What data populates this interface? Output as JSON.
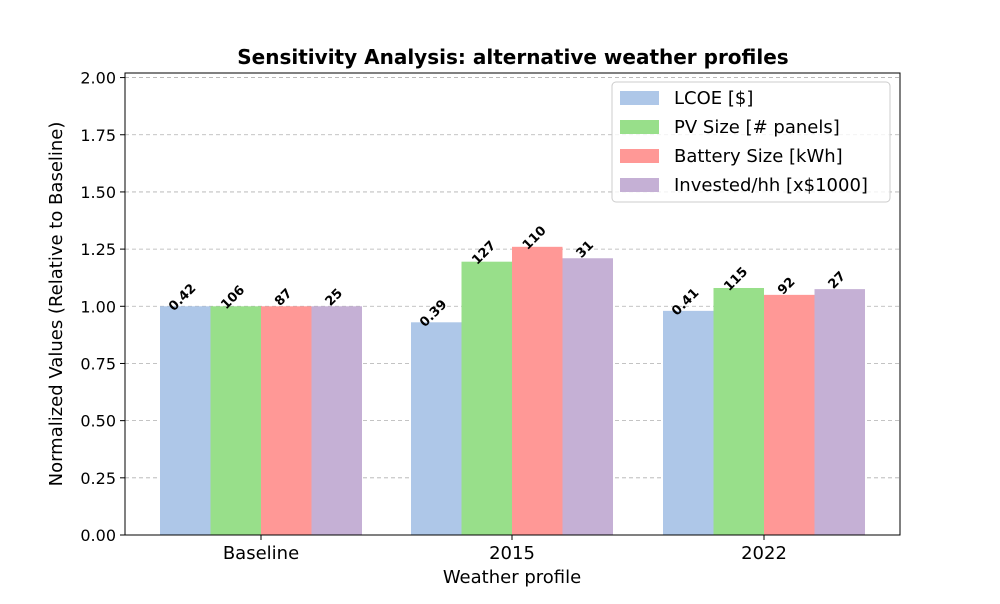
{
  "chart_data": {
    "type": "bar",
    "title": "Sensitivity Analysis: alternative weather profiles",
    "xlabel": "Weather profile",
    "ylabel": "Normalized Values (Relative to Baseline)",
    "ylim": [
      0,
      2.02
    ],
    "yticks": [
      0.0,
      0.25,
      0.5,
      0.75,
      1.0,
      1.25,
      1.5,
      1.75,
      2.0
    ],
    "ytick_labels": [
      "0.00",
      "0.25",
      "0.50",
      "0.75",
      "1.00",
      "1.25",
      "1.50",
      "1.75",
      "2.00"
    ],
    "grid": "y-dashed",
    "legend_position": "top-right",
    "categories": [
      "Baseline",
      "2015",
      "2022"
    ],
    "series": [
      {
        "name": "LCOE [$]",
        "color": "#aec7e8",
        "values": [
          1.0,
          0.93,
          0.98
        ],
        "labels": [
          "0.42",
          "0.39",
          "0.41"
        ]
      },
      {
        "name": "PV Size [# panels]",
        "color": "#98df8a",
        "values": [
          1.0,
          1.195,
          1.08
        ],
        "labels": [
          "106",
          "127",
          "115"
        ]
      },
      {
        "name": "Battery Size [kWh]",
        "color": "#ff9896",
        "values": [
          1.0,
          1.26,
          1.05
        ],
        "labels": [
          "87",
          "110",
          "92"
        ]
      },
      {
        "name": "Invested/hh [x$1000]",
        "color": "#c5b0d5",
        "values": [
          1.0,
          1.21,
          1.075
        ],
        "labels": [
          "25",
          "31",
          "27"
        ]
      }
    ]
  }
}
